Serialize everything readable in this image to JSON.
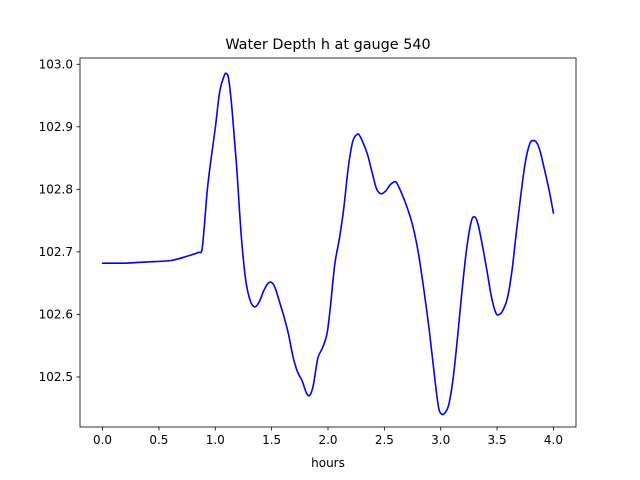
{
  "chart_data": {
    "type": "line",
    "title": "Water Depth h at gauge 540",
    "xlabel": "hours",
    "ylabel": "",
    "xlim": [
      -0.2,
      4.2
    ],
    "ylim": [
      102.42,
      103.01
    ],
    "xticks": [
      0.0,
      0.5,
      1.0,
      1.5,
      2.0,
      2.5,
      3.0,
      3.5,
      4.0
    ],
    "xtick_labels": [
      "0.0",
      "0.5",
      "1.0",
      "1.5",
      "2.0",
      "2.5",
      "3.0",
      "3.5",
      "4.0"
    ],
    "yticks": [
      102.5,
      102.6,
      102.7,
      102.8,
      102.9,
      103.0
    ],
    "ytick_labels": [
      "102.5",
      "102.6",
      "102.7",
      "102.8",
      "102.9",
      "103.0"
    ],
    "grid": false,
    "series": [
      {
        "color": "#0000ff",
        "x": [
          0.0,
          0.2,
          0.4,
          0.6,
          0.75,
          0.85,
          0.88,
          0.9,
          0.93,
          0.96,
          1.0,
          1.04,
          1.08,
          1.1,
          1.12,
          1.15,
          1.19,
          1.23,
          1.27,
          1.31,
          1.35,
          1.39,
          1.43,
          1.47,
          1.5,
          1.53,
          1.57,
          1.61,
          1.65,
          1.69,
          1.73,
          1.77,
          1.81,
          1.84,
          1.87,
          1.91,
          1.95,
          1.99,
          2.02,
          2.06,
          2.1,
          2.14,
          2.18,
          2.22,
          2.26,
          2.28,
          2.31,
          2.35,
          2.39,
          2.43,
          2.47,
          2.51,
          2.55,
          2.59,
          2.61,
          2.65,
          2.7,
          2.75,
          2.8,
          2.85,
          2.9,
          2.95,
          2.98,
          3.0,
          3.03,
          3.07,
          3.11,
          3.15,
          3.19,
          3.23,
          3.27,
          3.3,
          3.33,
          3.37,
          3.41,
          3.45,
          3.49,
          3.52,
          3.55,
          3.59,
          3.63,
          3.67,
          3.71,
          3.75,
          3.79,
          3.82,
          3.85,
          3.88,
          3.92,
          3.96,
          4.0
        ],
        "y": [
          102.682,
          102.682,
          102.684,
          102.686,
          102.693,
          102.699,
          102.702,
          102.735,
          102.8,
          102.845,
          102.898,
          102.957,
          102.982,
          102.985,
          102.975,
          102.925,
          102.835,
          102.727,
          102.655,
          102.622,
          102.612,
          102.62,
          102.638,
          102.65,
          102.651,
          102.643,
          102.62,
          102.596,
          102.568,
          102.532,
          102.508,
          102.494,
          102.474,
          102.471,
          102.487,
          102.53,
          102.546,
          102.568,
          102.61,
          102.68,
          102.72,
          102.77,
          102.835,
          102.877,
          102.888,
          102.886,
          102.875,
          102.856,
          102.828,
          102.801,
          102.793,
          102.797,
          102.807,
          102.812,
          102.81,
          102.795,
          102.772,
          102.743,
          102.7,
          102.64,
          102.572,
          102.493,
          102.452,
          102.442,
          102.441,
          102.455,
          102.498,
          102.565,
          102.64,
          102.705,
          102.748,
          102.756,
          102.745,
          102.71,
          102.67,
          102.628,
          102.602,
          102.6,
          102.606,
          102.625,
          102.667,
          102.73,
          102.79,
          102.843,
          102.873,
          102.878,
          102.875,
          102.862,
          102.832,
          102.8,
          102.762
        ]
      }
    ]
  }
}
